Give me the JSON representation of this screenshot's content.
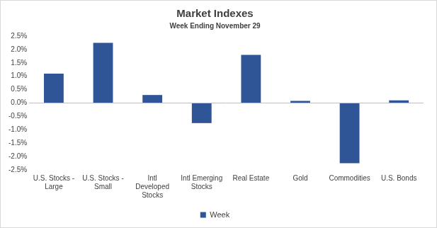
{
  "chart_data": {
    "type": "bar",
    "title": "Market Indexes",
    "subtitle": "Week Ending November 29",
    "categories": [
      "U.S. Stocks - Large",
      "U.S. Stocks - Small",
      "Intl Developed Stocks",
      "Intl Emerging Stocks",
      "Real Estate",
      "Gold",
      "Commodities",
      "U.S. Bonds"
    ],
    "series": [
      {
        "name": "Week",
        "color": "#2f5597",
        "values": [
          1.1,
          2.25,
          0.3,
          -0.75,
          1.8,
          0.08,
          -2.25,
          0.1
        ]
      }
    ],
    "ylim": [
      -2.5,
      2.5
    ],
    "yticks": [
      {
        "value": -2.5,
        "label": "-2.5%"
      },
      {
        "value": -2.0,
        "label": "-2.0%"
      },
      {
        "value": -1.5,
        "label": "-1.5%"
      },
      {
        "value": -1.0,
        "label": "-1.0%"
      },
      {
        "value": -0.5,
        "label": "-0.5%"
      },
      {
        "value": 0,
        "label": "0.0%"
      },
      {
        "value": 0.5,
        "label": "0.5%"
      },
      {
        "value": 1.0,
        "label": "1.0%"
      },
      {
        "value": 1.5,
        "label": "1.5%"
      },
      {
        "value": 2.0,
        "label": "2.0%"
      },
      {
        "value": 2.5,
        "label": "2.5%"
      }
    ],
    "grid": false,
    "legend": "bottom"
  }
}
